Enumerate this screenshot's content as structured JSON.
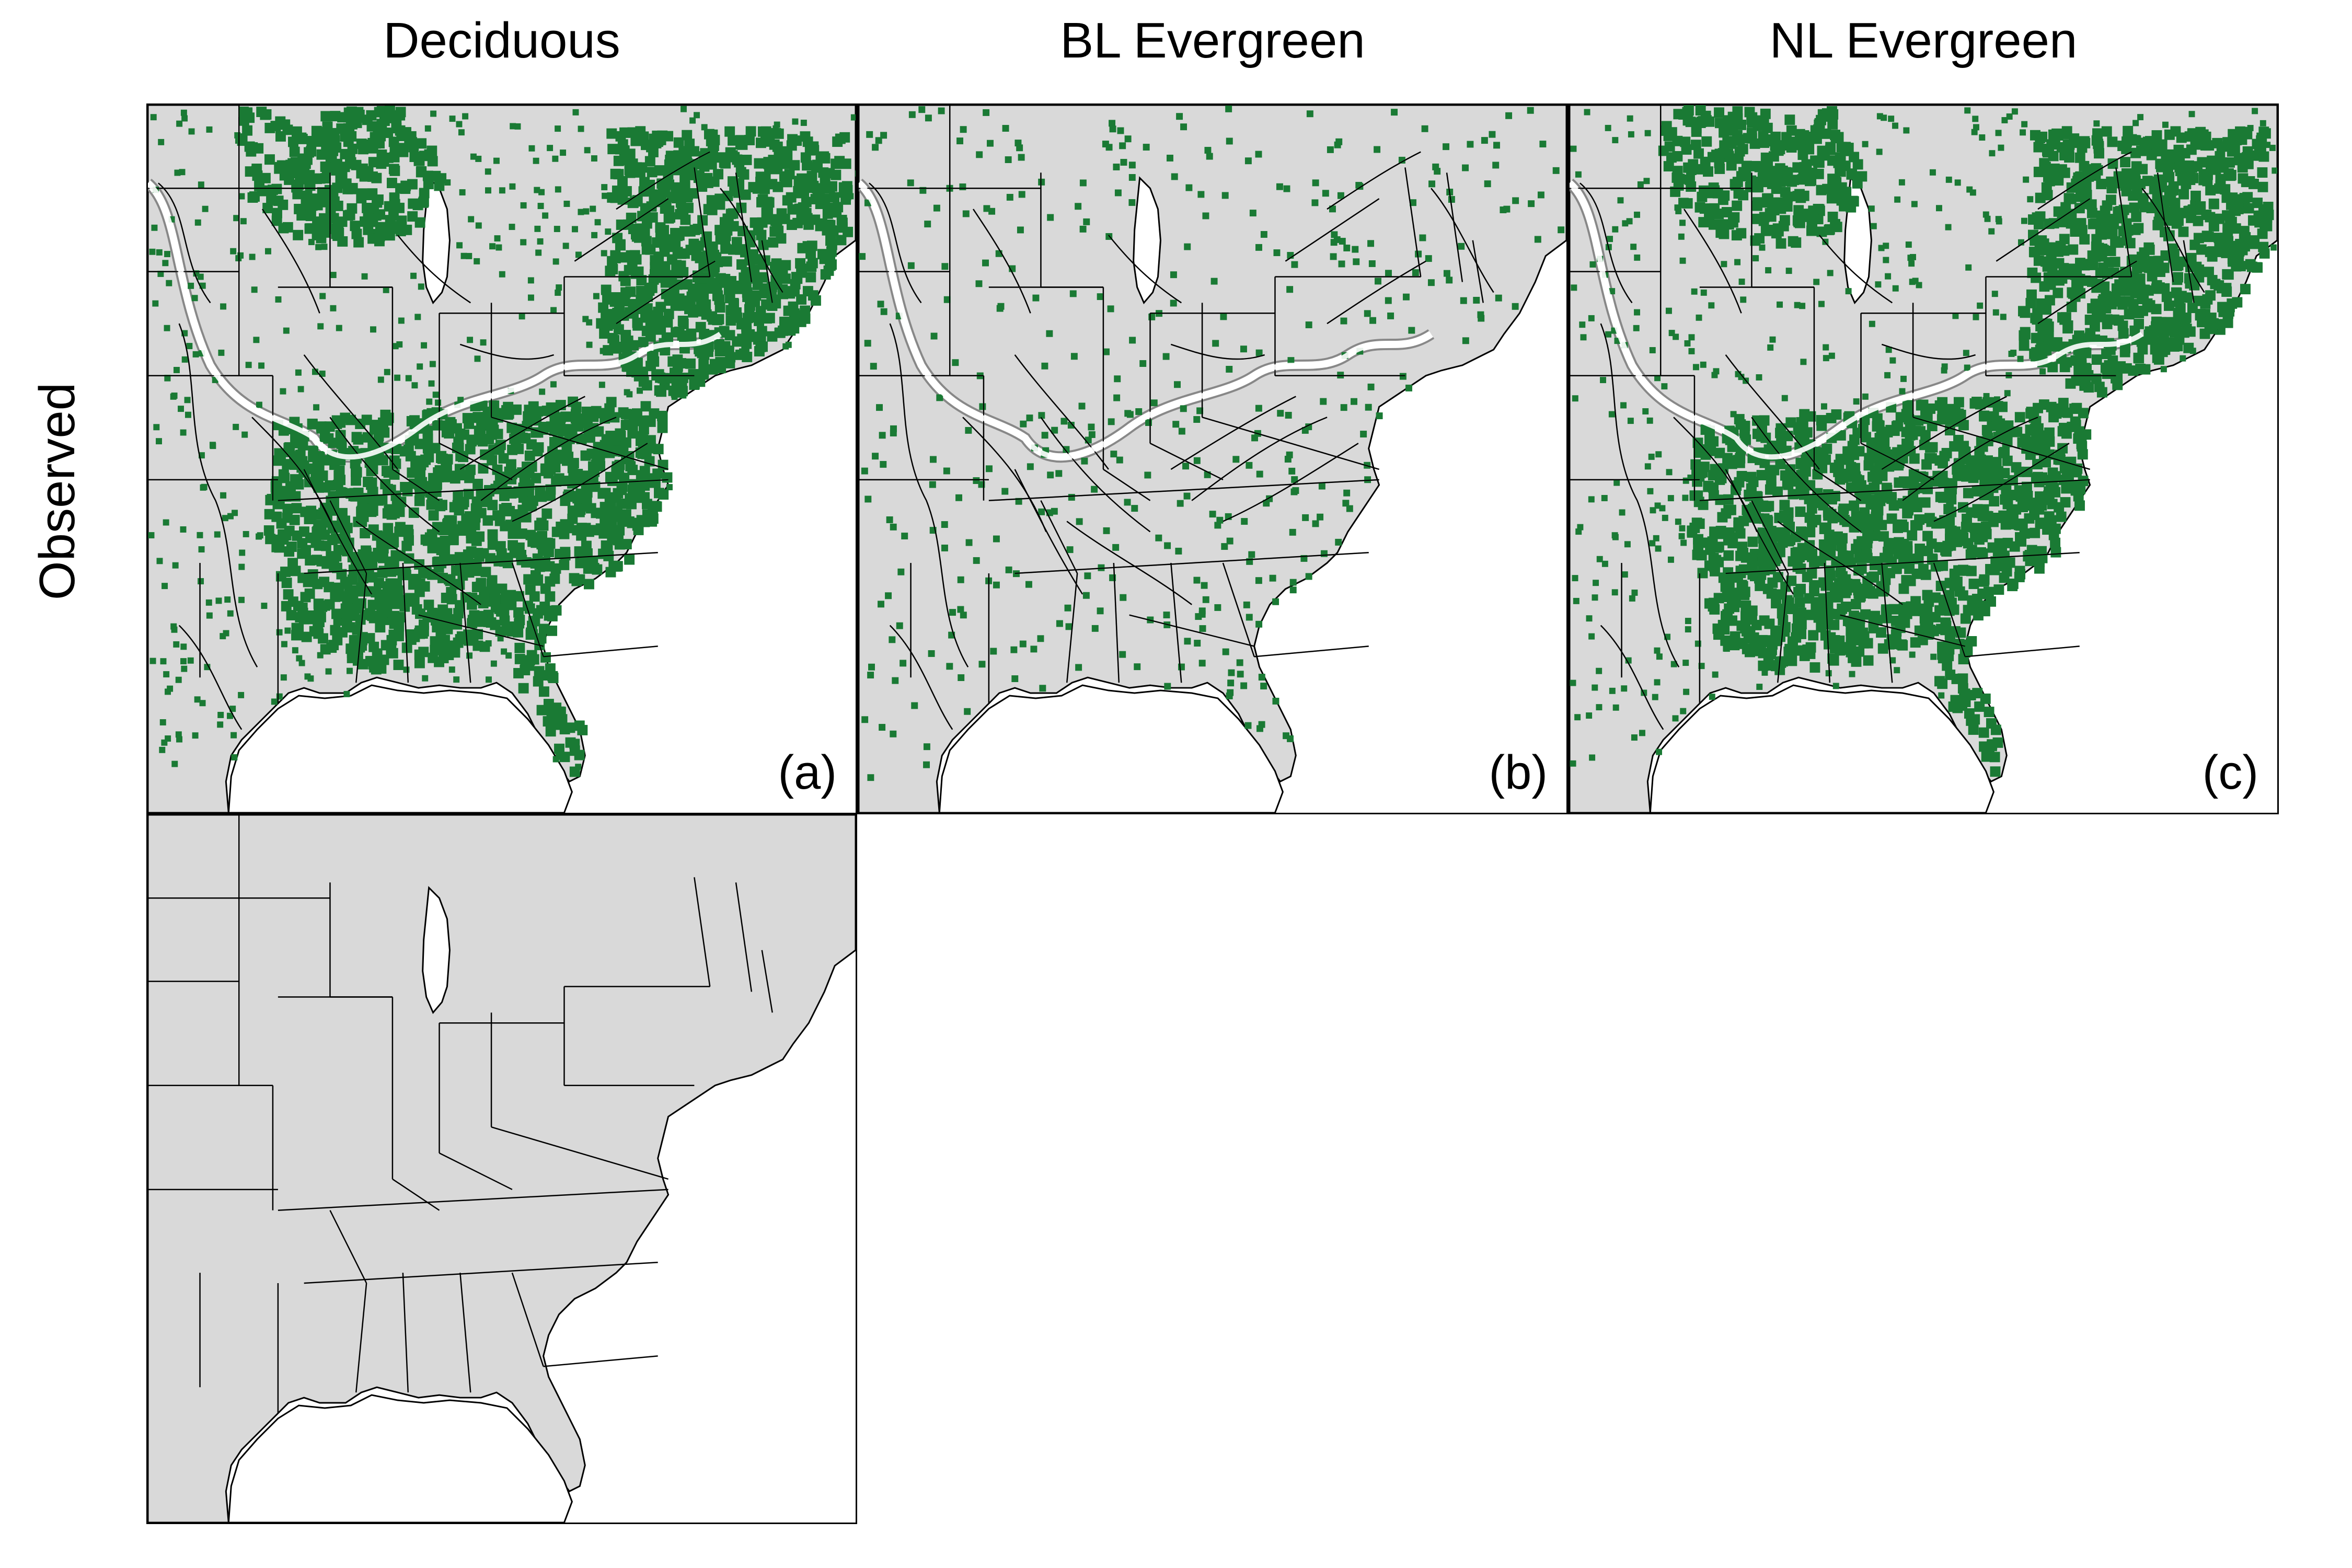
{
  "columns": [
    "Deciduous",
    "BL Evergreen",
    "NL Evergreen"
  ],
  "rows": [
    "Observed"
  ],
  "panels": [
    {
      "label": "(a)",
      "layer": "Deciduous",
      "density": "high"
    },
    {
      "label": "(b)",
      "layer": "BL Evergreen",
      "density": "sparse"
    },
    {
      "label": "(c)",
      "layer": "NL Evergreen",
      "density": "high"
    }
  ],
  "reference_panel": {
    "label": "",
    "content": "state-boundaries"
  },
  "colors": {
    "land": "#d9d9d9",
    "presence": "#1a7a34",
    "boundary": "#000000",
    "highlight": "#ffffff"
  }
}
